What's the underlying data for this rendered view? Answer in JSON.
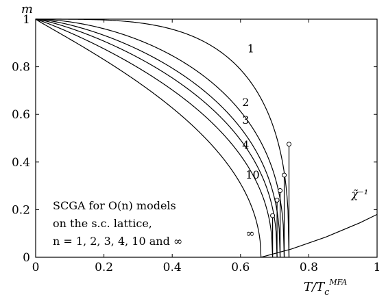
{
  "chart_data": {
    "type": "line",
    "xlabel": "T/T_c^MFA",
    "ylabel": "m",
    "xlim": [
      0,
      1
    ],
    "ylim": [
      0,
      1
    ],
    "x_ticks": [
      0,
      0.2,
      0.4,
      0.6,
      0.8,
      1
    ],
    "x_tick_labels": [
      "0",
      "0.2",
      "0.4",
      "0.6",
      "0.8",
      "1"
    ],
    "y_ticks": [
      0,
      0.2,
      0.4,
      0.6,
      0.8,
      1
    ],
    "y_tick_labels": [
      "0",
      "0.2",
      "0.4",
      "0.6",
      "0.8",
      "1"
    ],
    "grid": false,
    "annotation_lines": [
      "SCGA for O(n) models",
      "on the s.c. lattice,",
      "n = 1, 2, 3, 4, 10 and ∞"
    ],
    "series": [
      {
        "name": "1",
        "Tc": 0.742,
        "end_m": 0.475,
        "shape_p": 3.6,
        "shape_q": 0.38,
        "label_x": 0.62,
        "label_y": 0.86
      },
      {
        "name": "2",
        "Tc": 0.728,
        "end_m": 0.345,
        "shape_p": 1.8,
        "shape_q": 0.4,
        "label_x": 0.605,
        "label_y": 0.635
      },
      {
        "name": "3",
        "Tc": 0.716,
        "end_m": 0.28,
        "shape_p": 1.45,
        "shape_q": 0.41,
        "label_x": 0.605,
        "label_y": 0.56
      },
      {
        "name": "4",
        "Tc": 0.707,
        "end_m": 0.24,
        "shape_p": 1.25,
        "shape_q": 0.42,
        "label_x": 0.605,
        "label_y": 0.455
      },
      {
        "name": "10",
        "Tc": 0.694,
        "end_m": 0.175,
        "shape_p": 1.08,
        "shape_q": 0.44,
        "label_x": 0.615,
        "label_y": 0.33
      },
      {
        "name": "∞",
        "Tc": 0.66,
        "end_m": 0,
        "shape_p": 0.95,
        "shape_q": 0.48,
        "label_x": 0.615,
        "label_y": 0.085
      }
    ],
    "chi_inverse": {
      "name": "χ̃⁻¹",
      "x": [
        0.66,
        0.75,
        0.85,
        0.95,
        1.0
      ],
      "y": [
        0,
        0.035,
        0.085,
        0.145,
        0.18
      ],
      "label_x": 0.925,
      "label_y": 0.25
    }
  }
}
